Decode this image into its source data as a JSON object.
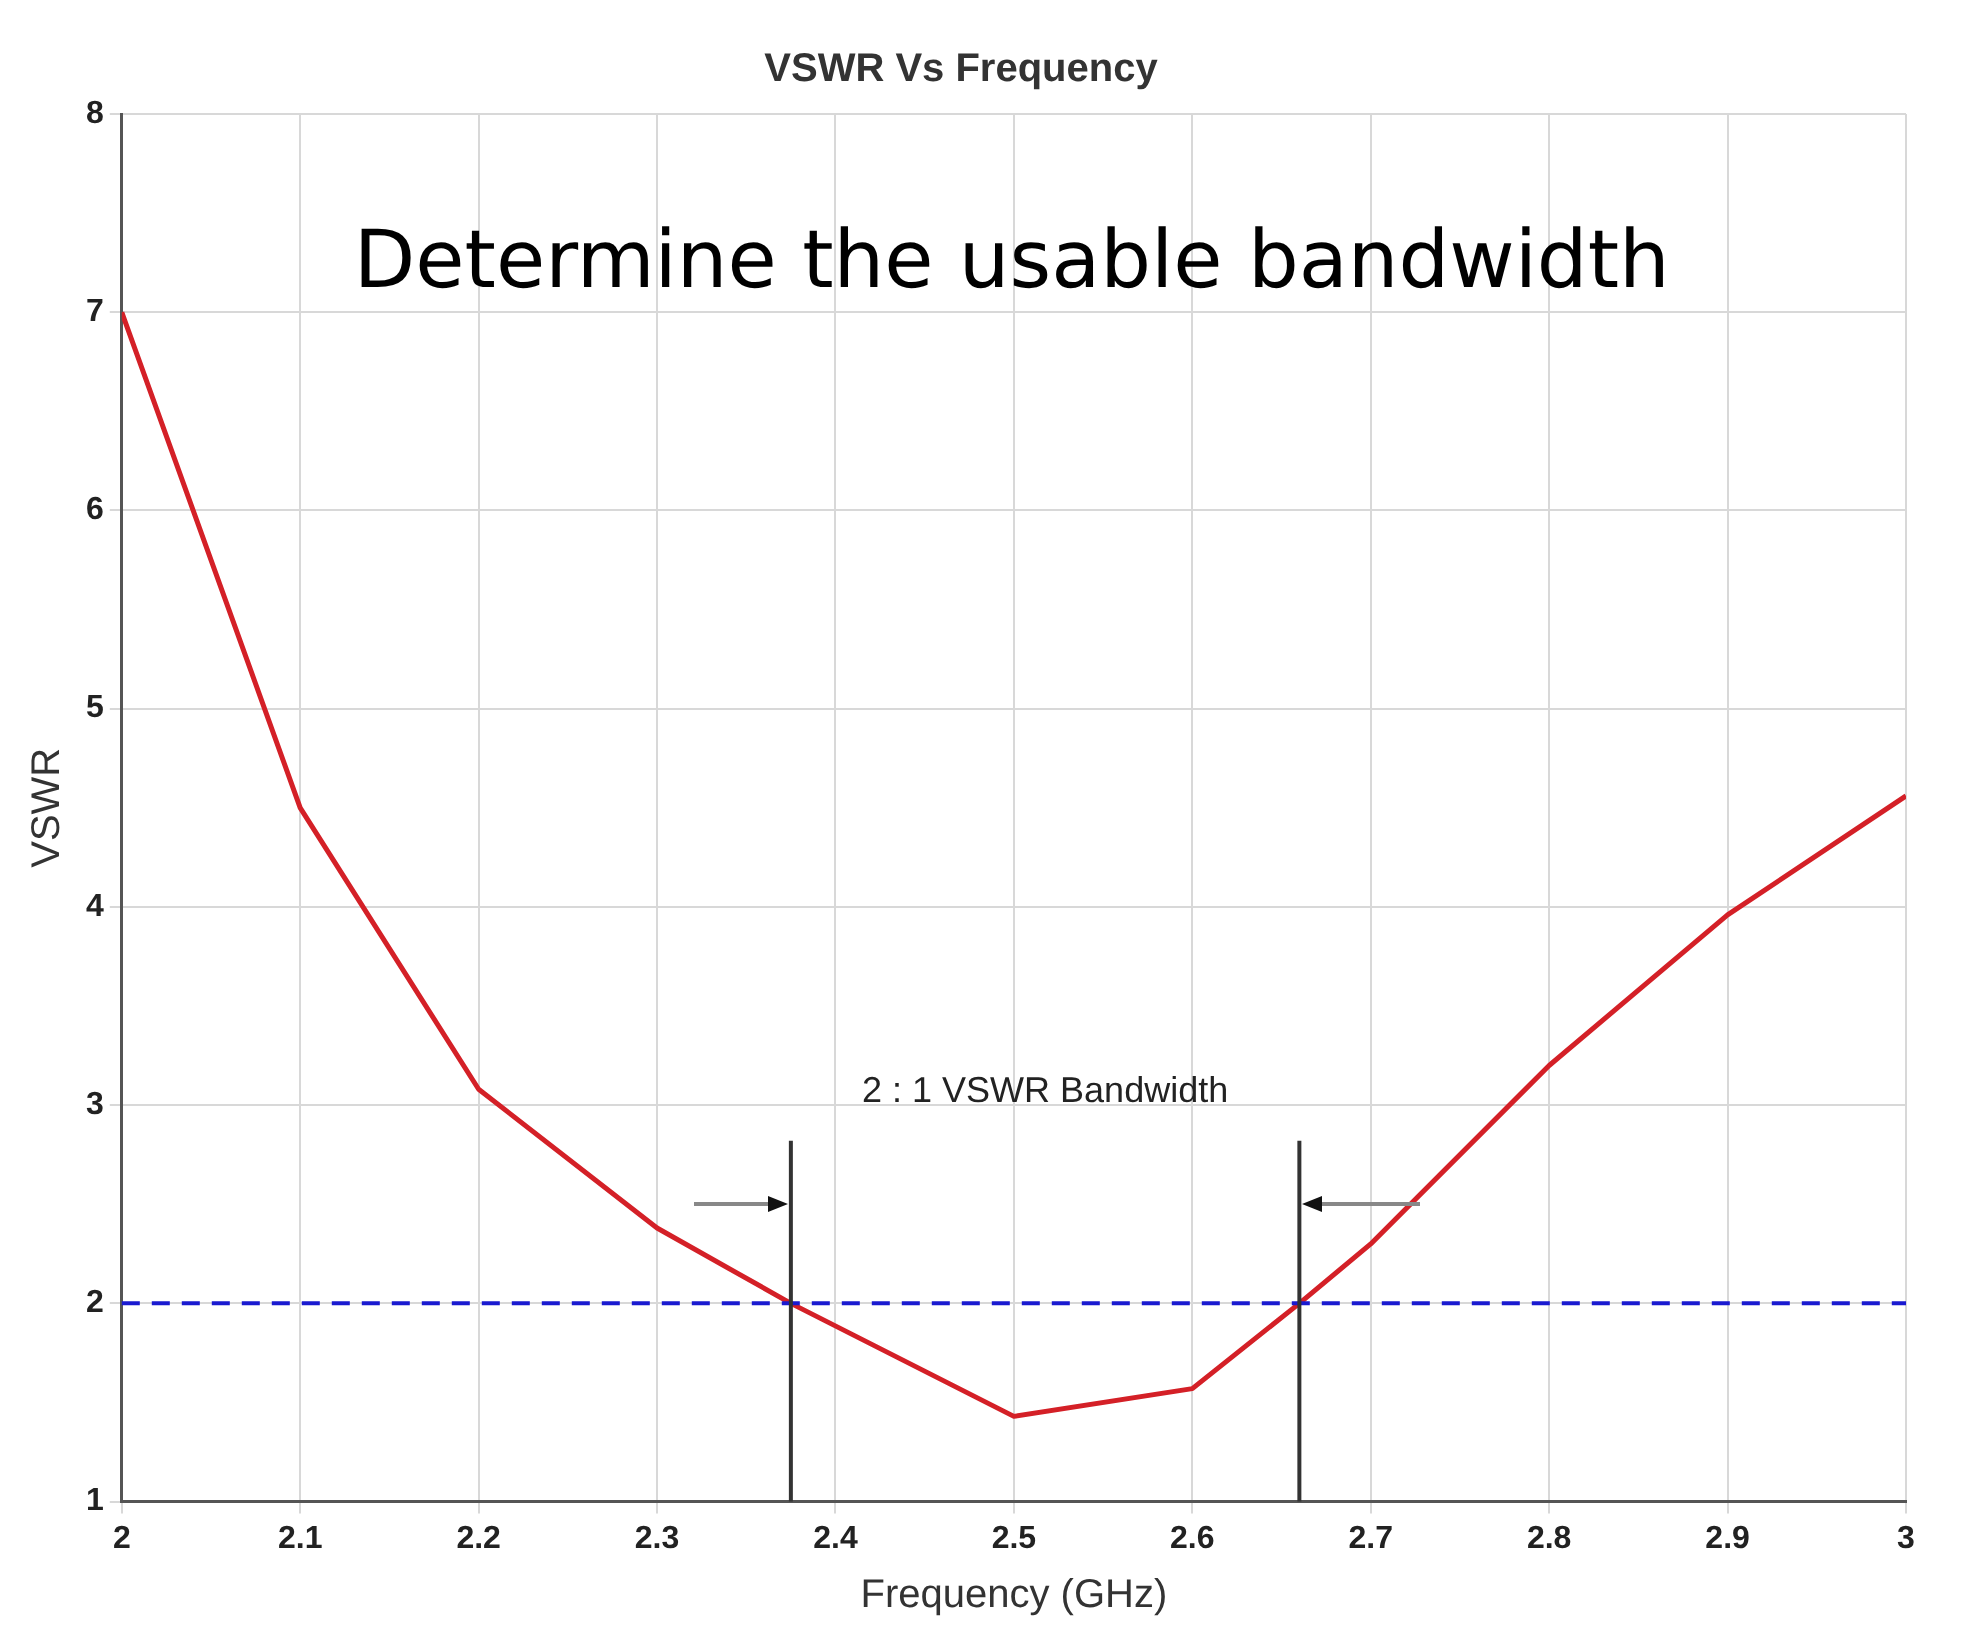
{
  "chart_data": {
    "type": "line",
    "title": "VSWR Vs Frequency",
    "xlabel": "Frequency (GHz)",
    "ylabel": "VSWR",
    "x": [
      2.0,
      2.1,
      2.2,
      2.3,
      2.375,
      2.5,
      2.6,
      2.66,
      2.7,
      2.8,
      2.9,
      3.0
    ],
    "series": [
      {
        "color": "#d42027",
        "values": [
          7.0,
          4.5,
          3.08,
          2.38,
          2.0,
          1.43,
          1.57,
          2.0,
          2.3,
          3.2,
          3.96,
          4.56
        ]
      }
    ],
    "xlim": [
      2,
      3
    ],
    "xticks": [
      2,
      2.1,
      2.2,
      2.3,
      2.4,
      2.5,
      2.6,
      2.7,
      2.8,
      2.9,
      3
    ],
    "ylim": [
      1,
      8
    ],
    "yticks": [
      1,
      2,
      3,
      4,
      5,
      6,
      7,
      8
    ],
    "grid": true,
    "marker": "none",
    "line_style": "solid",
    "ref_lines": [
      {
        "axis": "y",
        "value": 2,
        "color": "#1a1ad0",
        "line_style": "dashed"
      },
      {
        "axis": "x",
        "value": 2.375,
        "color": "#333333",
        "line_style": "solid"
      },
      {
        "axis": "x",
        "value": 2.66,
        "color": "#333333",
        "line_style": "solid"
      }
    ],
    "annotations": [
      "Determine the usable bandwidth",
      "2 : 1 VSWR Bandwidth"
    ]
  }
}
